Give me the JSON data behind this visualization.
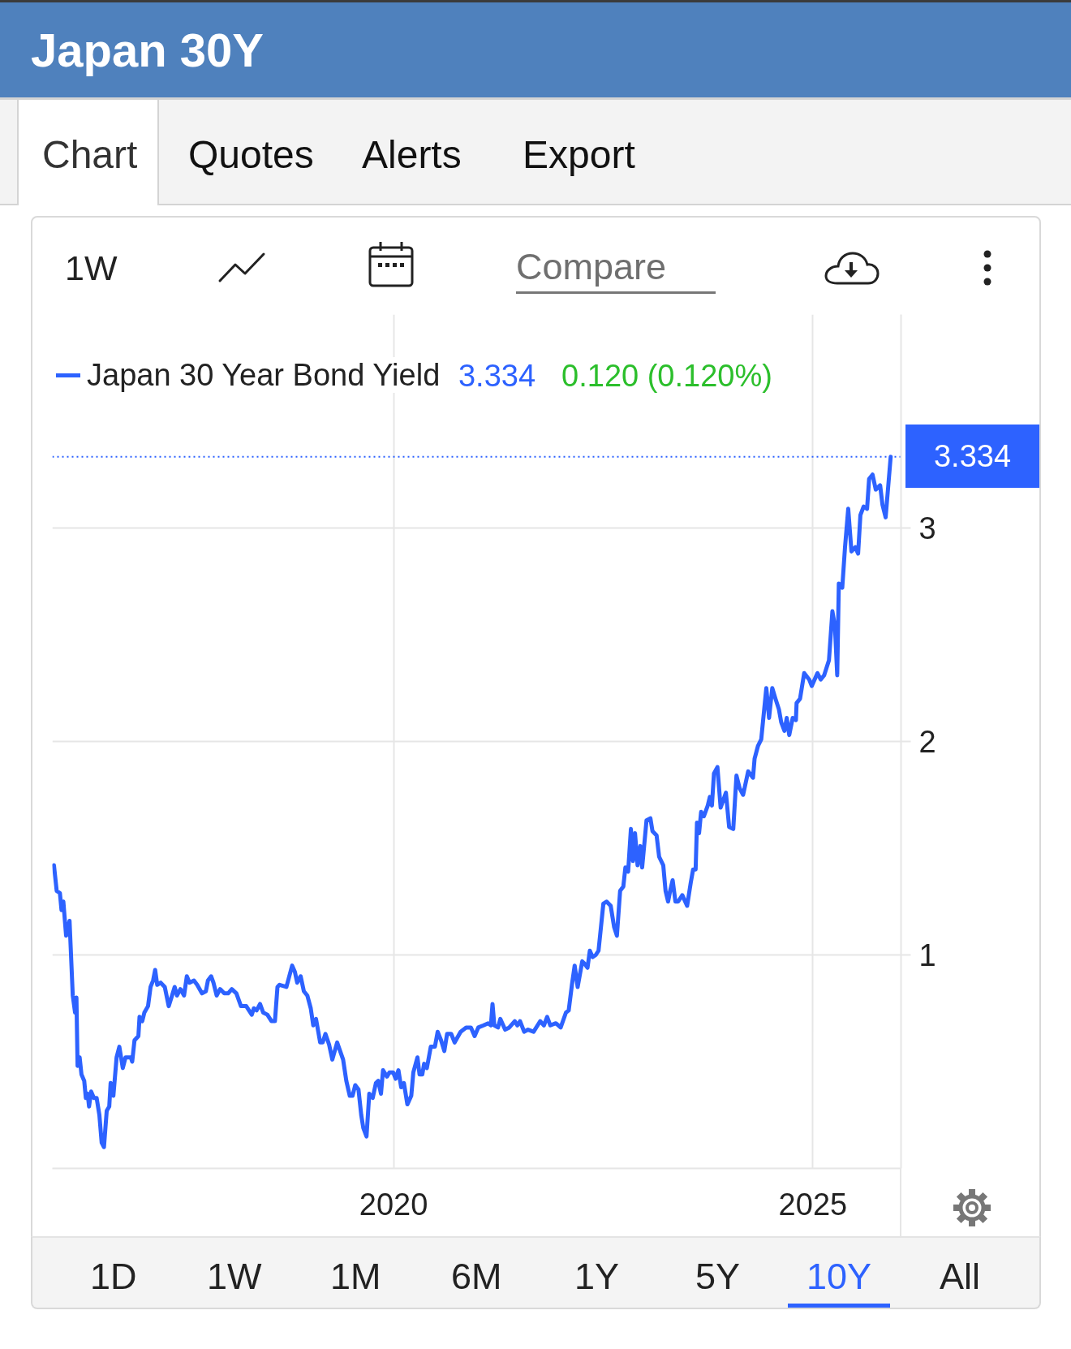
{
  "chart_data": {
    "type": "line",
    "title": "Japan 30Y",
    "x": [
      "2015-12-13",
      "2015-12-25",
      "2016-01-08",
      "2016-01-15",
      "2016-01-23",
      "2016-02-04",
      "2016-02-19",
      "2016-03-04",
      "2016-03-14",
      "2016-03-20",
      "2016-03-25",
      "2016-04-03",
      "2016-04-11",
      "2016-04-23",
      "2016-04-30",
      "2016-05-08",
      "2016-05-14",
      "2016-05-23",
      "2016-06-04",
      "2016-06-16",
      "2016-06-28",
      "2016-07-08",
      "2016-07-18",
      "2016-07-30",
      "2016-08-10",
      "2016-08-16",
      "2016-08-28",
      "2016-09-11",
      "2016-09-23",
      "2016-10-08",
      "2016-10-20",
      "2016-11-12",
      "2016-11-18",
      "2016-11-28",
      "2016-12-15",
      "2016-12-20",
      "2017-01-01",
      "2017-01-10",
      "2017-01-26",
      "2017-02-06",
      "2017-02-17",
      "2017-02-26",
      "2017-03-07",
      "2017-03-22",
      "2017-04-09",
      "2017-04-26",
      "2017-05-08",
      "2017-05-22",
      "2017-06-01",
      "2017-06-16",
      "2017-07-02",
      "2017-07-14",
      "2017-07-26",
      "2017-08-14",
      "2017-08-28",
      "2017-09-18",
      "2017-10-05",
      "2017-10-14",
      "2017-10-28",
      "2017-11-07",
      "2017-11-21",
      "2017-12-06",
      "2017-12-24",
      "2018-01-10",
      "2018-01-26",
      "2018-02-15",
      "2018-03-07",
      "2018-03-30",
      "2018-04-23",
      "2018-05-02",
      "2018-05-14",
      "2018-05-29",
      "2018-06-12",
      "2018-06-30",
      "2018-07-18",
      "2018-08-02",
      "2018-08-13",
      "2018-08-22",
      "2018-09-21",
      "2018-10-16",
      "2018-10-28",
      "2018-11-07",
      "2018-11-22",
      "2018-12-06",
      "2018-12-21",
      "2019-01-05",
      "2019-01-16",
      "2019-01-28",
      "2019-02-15",
      "2019-02-26",
      "2019-03-10",
      "2019-03-26",
      "2019-04-09",
      "2019-04-30",
      "2019-05-26",
      "2019-06-09",
      "2019-06-24",
      "2019-07-06",
      "2019-07-18",
      "2019-08-01",
      "2019-08-13",
      "2019-08-22",
      "2019-09-05",
      "2019-09-17",
      "2019-10-02",
      "2019-10-16",
      "2019-10-26",
      "2019-11-07",
      "2019-11-16",
      "2019-12-03",
      "2019-12-14",
      "2019-12-30",
      "2020-01-10",
      "2020-01-22",
      "2020-02-03",
      "2020-02-15",
      "2020-03-01",
      "2020-03-18",
      "2020-03-27",
      "2020-04-14",
      "2020-04-23",
      "2020-05-05",
      "2020-05-13",
      "2020-05-25",
      "2020-06-11",
      "2020-06-29",
      "2020-07-11",
      "2020-07-26",
      "2020-08-09",
      "2020-08-21",
      "2020-09-08",
      "2020-09-23",
      "2020-10-19",
      "2020-11-12",
      "2020-12-03",
      "2020-12-19",
      "2021-01-04",
      "2021-01-27",
      "2021-02-16",
      "2021-02-28",
      "2021-03-07",
      "2021-03-15",
      "2021-03-31",
      "2021-04-10",
      "2021-05-01",
      "2021-05-19",
      "2021-06-12",
      "2021-06-23",
      "2021-07-05",
      "2021-07-23",
      "2021-08-09",
      "2021-09-02",
      "2021-10-01",
      "2021-10-17",
      "2021-10-31",
      "2021-11-14",
      "2021-12-08",
      "2021-12-29",
      "2022-01-21",
      "2022-02-02",
      "2022-02-16",
      "2022-02-28",
      "2022-03-13",
      "2022-04-02",
      "2022-04-11",
      "2022-04-25",
      "2022-05-05",
      "2022-05-17",
      "2022-05-31",
      "2022-06-12",
      "2022-07-03",
      "2022-07-17",
      "2022-08-04",
      "2022-08-19",
      "2022-08-31",
      "2022-09-14",
      "2022-09-28",
      "2022-10-07",
      "2022-10-19",
      "2022-10-31",
      "2022-11-09",
      "2022-11-18",
      "2022-11-29",
      "2022-12-11",
      "2022-12-19",
      "2023-01-07",
      "2023-01-24",
      "2023-02-02",
      "2023-02-20",
      "2023-03-03",
      "2023-03-21",
      "2023-03-31",
      "2023-04-11",
      "2023-04-20",
      "2023-05-01",
      "2023-05-13",
      "2023-05-25",
      "2023-06-12",
      "2023-07-03",
      "2023-07-19",
      "2023-07-29",
      "2023-08-09",
      "2023-08-15",
      "2023-08-24",
      "2023-09-02",
      "2023-09-14",
      "2023-10-01",
      "2023-10-10",
      "2023-10-19",
      "2023-10-28",
      "2023-11-12",
      "2023-11-26",
      "2023-12-19",
      "2024-01-02",
      "2024-01-20",
      "2024-02-03",
      "2024-02-17",
      "2024-03-03",
      "2024-03-25",
      "2024-04-15",
      "2024-04-22",
      "2024-05-07",
      "2024-05-21",
      "2024-06-12",
      "2024-06-24",
      "2024-07-08",
      "2024-07-22",
      "2024-08-06",
      "2024-08-16",
      "2024-08-30",
      "2024-09-09",
      "2024-09-20",
      "2024-10-05",
      "2024-10-19",
      "2024-10-22",
      "2024-11-06",
      "2024-11-24",
      "2024-12-16",
      "2024-12-27",
      "2025-01-21",
      "2025-02-04",
      "2025-02-19",
      "2025-03-12",
      "2025-03-27",
      "2025-04-07",
      "2025-04-17",
      "2025-04-24",
      "2025-05-09",
      "2025-05-21",
      "2025-06-04",
      "2025-06-18",
      "2025-07-05",
      "2025-07-17",
      "2025-07-27",
      "2025-08-10",
      "2025-08-25",
      "2025-09-03",
      "2025-09-18",
      "2025-10-02",
      "2025-10-21",
      "2025-10-31",
      "2025-11-14",
      "2025-12-06"
    ],
    "series": [
      {
        "name": "Japan 30 Year Bond Yield",
        "color": "#2d62ff",
        "values": [
          1.42,
          1.3,
          1.29,
          1.21,
          1.25,
          1.09,
          1.16,
          0.81,
          0.73,
          0.8,
          0.48,
          0.52,
          0.44,
          0.41,
          0.33,
          0.35,
          0.29,
          0.36,
          0.33,
          0.33,
          0.25,
          0.12,
          0.1,
          0.27,
          0.29,
          0.4,
          0.34,
          0.52,
          0.57,
          0.47,
          0.52,
          0.52,
          0.5,
          0.6,
          0.62,
          0.71,
          0.69,
          0.73,
          0.76,
          0.85,
          0.88,
          0.93,
          0.86,
          0.87,
          0.85,
          0.76,
          0.8,
          0.85,
          0.81,
          0.84,
          0.81,
          0.9,
          0.87,
          0.88,
          0.86,
          0.82,
          0.83,
          0.88,
          0.9,
          0.87,
          0.81,
          0.84,
          0.82,
          0.82,
          0.84,
          0.82,
          0.76,
          0.76,
          0.72,
          0.75,
          0.74,
          0.77,
          0.73,
          0.72,
          0.69,
          0.69,
          0.85,
          0.86,
          0.85,
          0.95,
          0.92,
          0.87,
          0.9,
          0.83,
          0.81,
          0.75,
          0.67,
          0.7,
          0.59,
          0.59,
          0.63,
          0.58,
          0.51,
          0.59,
          0.51,
          0.41,
          0.34,
          0.34,
          0.39,
          0.37,
          0.25,
          0.19,
          0.15,
          0.35,
          0.33,
          0.4,
          0.41,
          0.35,
          0.46,
          0.43,
          0.45,
          0.45,
          0.42,
          0.46,
          0.38,
          0.4,
          0.3,
          0.34,
          0.45,
          0.52,
          0.44,
          0.44,
          0.49,
          0.47,
          0.57,
          0.57,
          0.64,
          0.6,
          0.55,
          0.63,
          0.63,
          0.59,
          0.64,
          0.66,
          0.66,
          0.62,
          0.66,
          0.67,
          0.68,
          0.67,
          0.77,
          0.67,
          0.66,
          0.7,
          0.65,
          0.66,
          0.69,
          0.67,
          0.69,
          0.64,
          0.65,
          0.64,
          0.69,
          0.67,
          0.71,
          0.67,
          0.68,
          0.66,
          0.73,
          0.74,
          0.86,
          0.95,
          0.85,
          0.97,
          0.96,
          0.94,
          1.02,
          0.99,
          1.0,
          1.02,
          1.24,
          1.25,
          1.23,
          1.13,
          1.09,
          1.3,
          1.32,
          1.41,
          1.39,
          1.59,
          1.44,
          1.57,
          1.42,
          1.51,
          1.41,
          1.63,
          1.64,
          1.58,
          1.56,
          1.46,
          1.42,
          1.3,
          1.25,
          1.3,
          1.35,
          1.25,
          1.25,
          1.28,
          1.23,
          1.34,
          1.4,
          1.4,
          1.62,
          1.57,
          1.67,
          1.65,
          1.7,
          1.74,
          1.7,
          1.85,
          1.88,
          1.69,
          1.76,
          1.6,
          1.59,
          1.84,
          1.78,
          1.75,
          1.86,
          1.83,
          1.92,
          1.98,
          2.01,
          2.25,
          2.11,
          2.25,
          2.2,
          2.15,
          2.09,
          2.05,
          2.11,
          2.03,
          2.11,
          2.1,
          2.18,
          2.2,
          2.32,
          2.29,
          2.26,
          2.32,
          2.29,
          2.31,
          2.38,
          2.61,
          2.54,
          2.31,
          2.74,
          2.72,
          2.91,
          3.09,
          2.89,
          2.91,
          2.88,
          3.06,
          3.1,
          3.09,
          3.23,
          3.25,
          3.18,
          3.2,
          3.11,
          3.05,
          3.334
        ]
      }
    ],
    "xlim": [
      "2015-12-06",
      "2026-01-20"
    ],
    "xticks": [
      "2020",
      "2025"
    ],
    "ylim": [
      0,
      4
    ],
    "yticks": [
      1,
      2,
      3
    ],
    "grid": true,
    "legend": "top left",
    "ref_lines": [
      {
        "axis": "y",
        "value": 3.334,
        "label": "3.334",
        "color": "#2d62ff",
        "line_style": "dotted"
      }
    ],
    "annotations": [
      "3.334",
      "0.120 (0.120%)",
      "Chart",
      "Quotes",
      "Alerts",
      "Export",
      "1W",
      "Compare",
      "1D",
      "1W",
      "1M",
      "6M",
      "1Y",
      "5Y",
      "10Y",
      "All"
    ]
  }
}
